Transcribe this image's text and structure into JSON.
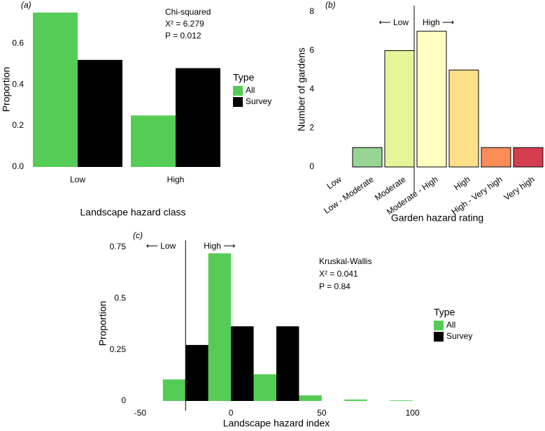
{
  "chart_data": [
    {
      "type": "bar",
      "panel_label": "(a)",
      "ylabel": "Proportion",
      "xlabel": "Landscape hazard class",
      "categories": [
        "Low",
        "High"
      ],
      "series": [
        {
          "name": "All",
          "color": "#55cc55",
          "values": [
            0.75,
            0.25
          ]
        },
        {
          "name": "Survey",
          "color": "#000000",
          "values": [
            0.52,
            0.48
          ]
        }
      ],
      "ylim": [
        0,
        0.75
      ],
      "yticks": [
        {
          "value": 0,
          "label": "0.0"
        },
        0.2,
        0.4,
        0.6
      ],
      "legend_title": "Type",
      "legend": "right",
      "annotations": [
        "Chi-squared",
        "X² = 6.279",
        "P = 0.012"
      ]
    },
    {
      "type": "bar",
      "panel_label": "(b)",
      "ylabel": "Number of gardens",
      "xlabel": "Garden hazard rating",
      "categories": [
        "Low",
        "Low - Moderate",
        "Moderate",
        "Moderate - High",
        "High",
        "High - Very high",
        "Very high"
      ],
      "values": [
        0,
        1,
        6,
        7,
        5,
        1,
        1
      ],
      "colors": [
        "#1a9850",
        "#98d594",
        "#e6f598",
        "#ffffbf",
        "#fee08b",
        "#fc8d59",
        "#d53e4f"
      ],
      "ylim": [
        0,
        8
      ],
      "yticks": [
        0,
        2,
        4,
        6,
        8
      ],
      "annotations": [
        "⟵ Low",
        "High ⟶"
      ]
    },
    {
      "type": "histogram",
      "panel_label": "(c)",
      "ylabel": "Proportion",
      "xlabel": "Landscape hazard index",
      "bins": [
        -37.5,
        -12.5,
        12.5,
        37.5,
        62.5,
        87.5,
        112.5
      ],
      "series": [
        {
          "name": "All",
          "color": "#55cc55",
          "values": [
            0.105,
            0.72,
            0.13,
            0.027,
            0.007,
            0.003
          ]
        },
        {
          "name": "Survey",
          "color": "#000000",
          "values": [
            0.273,
            0.364,
            0.364,
            0,
            0,
            0
          ]
        }
      ],
      "xlim": [
        -54,
        104
      ],
      "xticks": [
        -50,
        0,
        50,
        100
      ],
      "ylim": [
        0,
        0.78
      ],
      "yticks": [
        0,
        0.25,
        0.5,
        0.75
      ],
      "divider": -25,
      "legend_title": "Type",
      "legend": "right",
      "annotations": [
        "⟵ Low",
        "High ⟶",
        "Kruskal-Wallis",
        "X² = 0.041",
        "P = 0.84"
      ]
    }
  ]
}
